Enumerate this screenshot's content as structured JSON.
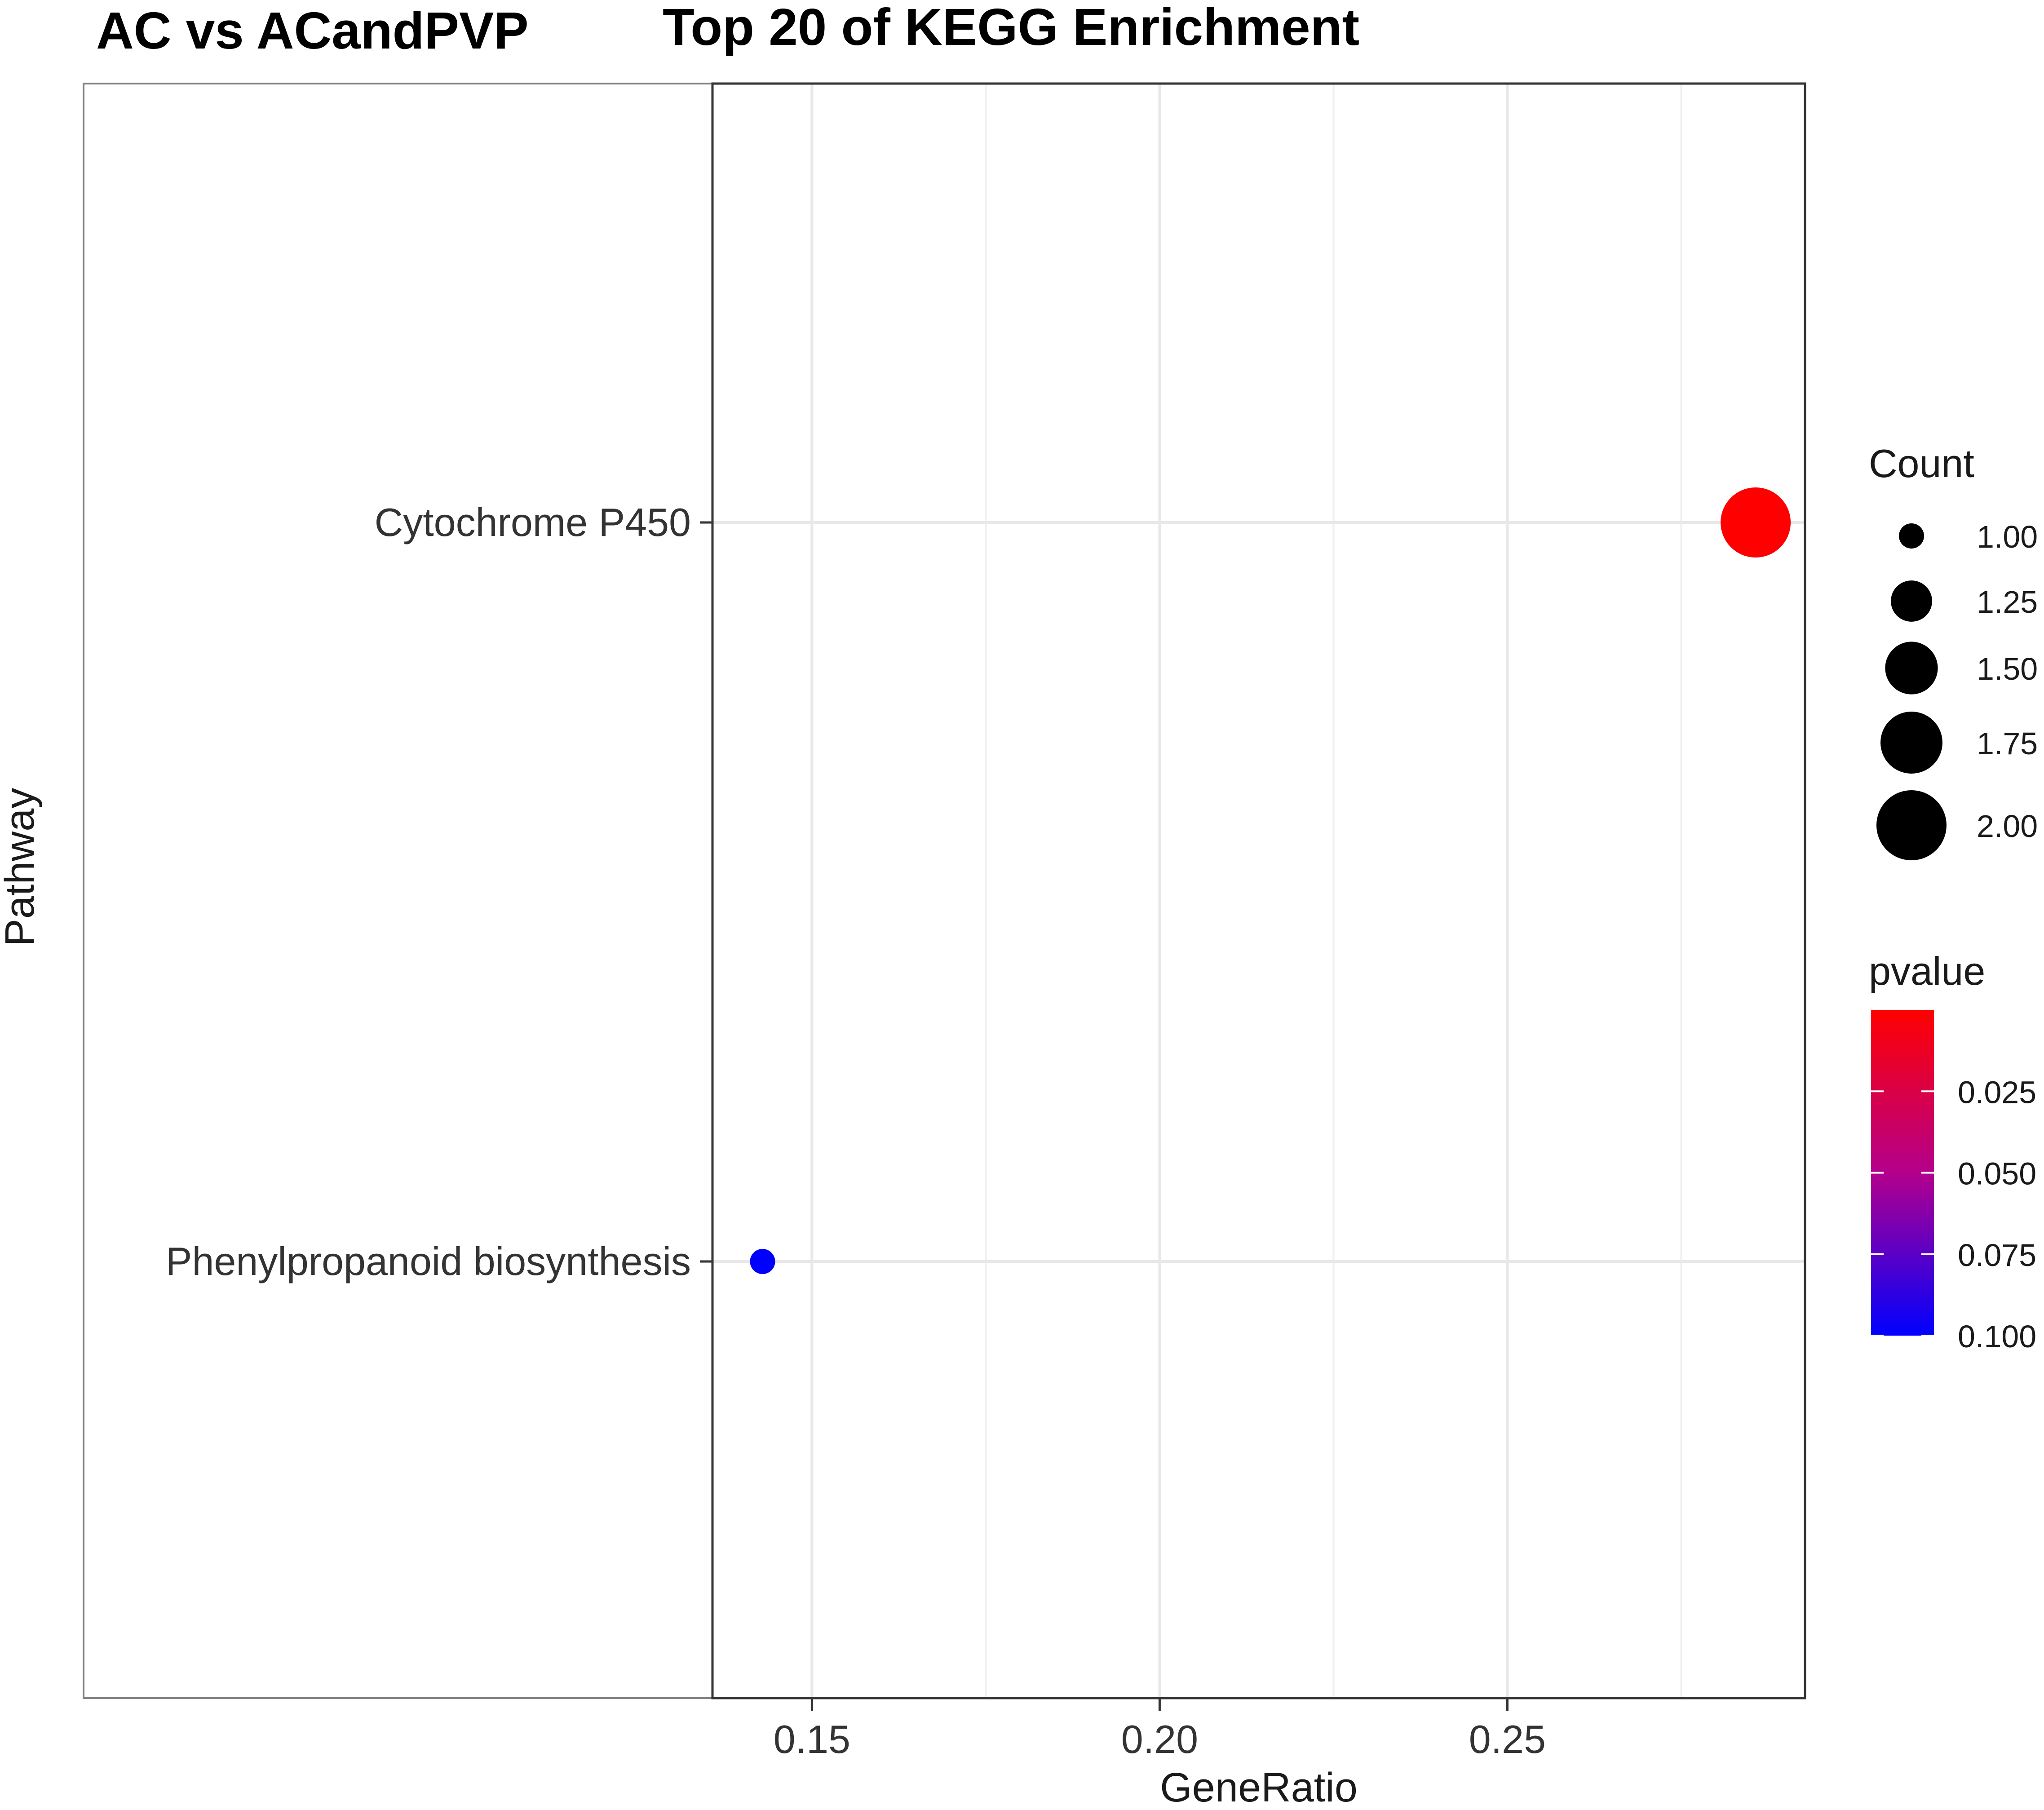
{
  "chart_data": {
    "type": "scatter",
    "group_label": "AC vs ACandPVP",
    "title": "Top 20 of KEGG Enrichment",
    "xlabel": "GeneRatio",
    "ylabel": "Pathway",
    "xlim": [
      0.1357,
      0.2928
    ],
    "x_ticks": [
      {
        "value": 0.15,
        "label": "0.15"
      },
      {
        "value": 0.2,
        "label": "0.20"
      },
      {
        "value": 0.25,
        "label": "0.25"
      }
    ],
    "x_minor_ticks": [
      0.175,
      0.225,
      0.275
    ],
    "categories": [
      "Phenylpropanoid biosynthesis",
      "Cytochrome P450"
    ],
    "points": [
      {
        "pathway": "Cytochrome P450",
        "gene_ratio": 0.2857,
        "count": 2,
        "pvalue": 0.0
      },
      {
        "pathway": "Phenylpropanoid biosynthesis",
        "gene_ratio": 0.1429,
        "count": 1,
        "pvalue": 0.1
      }
    ],
    "size_legend": {
      "title": "Count",
      "entries": [
        {
          "value": 1.0,
          "label": "1.00"
        },
        {
          "value": 1.25,
          "label": "1.25"
        },
        {
          "value": 1.5,
          "label": "1.50"
        },
        {
          "value": 1.75,
          "label": "1.75"
        },
        {
          "value": 2.0,
          "label": "2.00"
        }
      ]
    },
    "color_legend": {
      "title": "pvalue",
      "range": [
        0.0,
        0.1
      ],
      "low_color": "#ff0000",
      "high_color": "#0000ff",
      "ticks": [
        {
          "value": 0.025,
          "label": "0.025"
        },
        {
          "value": 0.05,
          "label": "0.050"
        },
        {
          "value": 0.075,
          "label": "0.075"
        },
        {
          "value": 0.1,
          "label": "0.100"
        }
      ]
    },
    "grid": true,
    "legend_position": "right"
  }
}
